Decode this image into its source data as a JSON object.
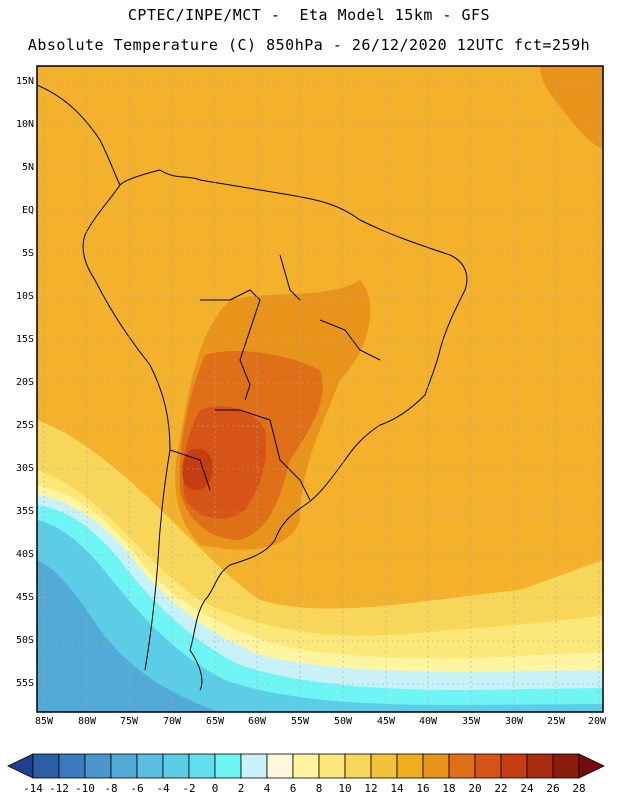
{
  "header": {
    "line1": "CPTEC/INPE/MCT -  Eta Model 15km - GFS",
    "line2": "Absolute Temperature (C) 850hPa - 26/12/2020 12UTC fct=259h"
  },
  "map": {
    "lat_labels": [
      "15N",
      "10N",
      "5N",
      "EQ",
      "5S",
      "10S",
      "15S",
      "20S",
      "25S",
      "30S",
      "35S",
      "40S",
      "45S",
      "50S",
      "55S"
    ],
    "lon_labels": [
      "85W",
      "80W",
      "75W",
      "70W",
      "65W",
      "60W",
      "55W",
      "50W",
      "45W",
      "40W",
      "35W",
      "30W",
      "25W",
      "20W"
    ]
  },
  "colorbar": {
    "labels": [
      "-14",
      "-12",
      "-10",
      "-8",
      "-6",
      "-4",
      "-2",
      "0",
      "2",
      "4",
      "6",
      "8",
      "10",
      "12",
      "14",
      "16",
      "18",
      "20",
      "22",
      "24",
      "26",
      "28"
    ],
    "colors": [
      "#1f3f8f",
      "#2b5ea6",
      "#3a7bbf",
      "#4a95cc",
      "#52aad6",
      "#5bbde0",
      "#5ccde6",
      "#63dfee",
      "#70f5f5",
      "#c8f2f8",
      "#fff8dc",
      "#fff5a0",
      "#fbe878",
      "#f7d65a",
      "#f2c23a",
      "#eeae1e",
      "#e8931a",
      "#e07018",
      "#d65516",
      "#c43e12",
      "#a82c10",
      "#8a1c0c",
      "#740c0e"
    ]
  }
}
